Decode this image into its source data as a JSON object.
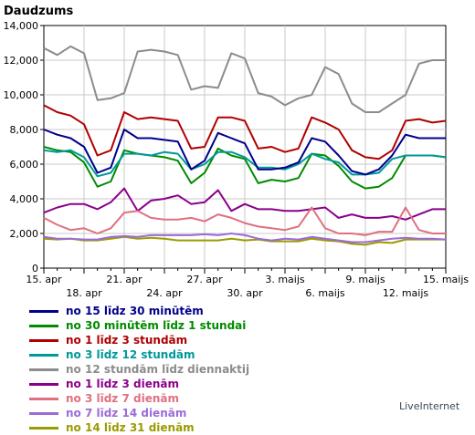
{
  "chart_data": {
    "type": "line",
    "ylabel": "Daudzums",
    "ylim": [
      0,
      14000
    ],
    "yticks": [
      0,
      2000,
      4000,
      6000,
      8000,
      10000,
      12000,
      14000
    ],
    "ytick_labels": [
      "0",
      "2,000",
      "4,000",
      "6,000",
      "8,000",
      "10,000",
      "12,000",
      "14,000"
    ],
    "x": [
      "15. apr",
      "16. apr",
      "17. apr",
      "18. apr",
      "19. apr",
      "20. apr",
      "21. apr",
      "22. apr",
      "23. apr",
      "24. apr",
      "25. apr",
      "26. apr",
      "27. apr",
      "28. apr",
      "29. apr",
      "30. apr",
      "1. maijs",
      "2. maijs",
      "3. maijs",
      "4. maijs",
      "5. maijs",
      "6. maijs",
      "7. maijs",
      "8. maijs",
      "9. maijs",
      "10. maijs",
      "11. maijs",
      "12. maijs",
      "13. maijs",
      "14. maijs",
      "15. maijs"
    ],
    "xtick_labels_upper": [
      {
        "index": 0,
        "label": "15. apr"
      },
      {
        "index": 6,
        "label": "21. apr"
      },
      {
        "index": 12,
        "label": "27. apr"
      },
      {
        "index": 18,
        "label": "3. maijs"
      },
      {
        "index": 24,
        "label": "9. maijs"
      },
      {
        "index": 30,
        "label": "15. maijs"
      }
    ],
    "xtick_labels_lower": [
      {
        "index": 3,
        "label": "18. apr"
      },
      {
        "index": 9,
        "label": "24. apr"
      },
      {
        "index": 15,
        "label": "30. apr"
      },
      {
        "index": 21,
        "label": "6. maijs"
      },
      {
        "index": 27,
        "label": "12. maijs"
      }
    ],
    "grid": true,
    "legend_position": "bottom",
    "series": [
      {
        "name": "no 15 līdz 30 minūtēm",
        "color": "#00008b",
        "values": [
          8000,
          7700,
          7500,
          7000,
          5500,
          5800,
          8000,
          7500,
          7500,
          7400,
          7300,
          5700,
          6200,
          7800,
          7500,
          7200,
          5700,
          5700,
          5800,
          6100,
          7500,
          7300,
          6500,
          5600,
          5400,
          5700,
          6500,
          7700,
          7500,
          7500,
          7500
        ]
      },
      {
        "name": "no 30 minūtēm līdz 1 stundai",
        "color": "#008b00",
        "values": [
          7000,
          6800,
          6700,
          6100,
          4700,
          5000,
          6800,
          6600,
          6500,
          6400,
          6200,
          4900,
          5500,
          6900,
          6500,
          6300,
          4900,
          5100,
          5000,
          5200,
          6600,
          6500,
          5900,
          5000,
          4600,
          4700,
          5200,
          6500,
          6500,
          6500,
          6400
        ]
      },
      {
        "name": "no 1 līdz 3 stundām",
        "color": "#b00000",
        "values": [
          9400,
          9000,
          8800,
          8300,
          6500,
          6800,
          9000,
          8600,
          8700,
          8600,
          8500,
          6900,
          7000,
          8700,
          8700,
          8500,
          6900,
          7000,
          6700,
          6900,
          8700,
          8400,
          8000,
          6800,
          6400,
          6300,
          6800,
          8500,
          8600,
          8400,
          8500
        ]
      },
      {
        "name": "no 3 līdz 12 stundām",
        "color": "#00999a",
        "values": [
          6800,
          6700,
          6800,
          6400,
          5300,
          5500,
          6600,
          6600,
          6500,
          6700,
          6600,
          5700,
          6000,
          6700,
          6700,
          6400,
          5800,
          5800,
          5700,
          6000,
          6600,
          6300,
          6100,
          5400,
          5400,
          5500,
          6300,
          6500,
          6500,
          6500,
          6400
        ]
      },
      {
        "name": "no 12 stundām līdz diennaktij",
        "color": "#8c8c8c",
        "values": [
          12700,
          12300,
          12800,
          12400,
          9700,
          9800,
          10100,
          12500,
          12600,
          12500,
          12300,
          10300,
          10500,
          10400,
          12400,
          12100,
          10100,
          9900,
          9400,
          9800,
          10000,
          11600,
          11200,
          9500,
          9000,
          9000,
          9500,
          10000,
          11800,
          12000,
          12000
        ]
      },
      {
        "name": "no 1 līdz 3 dienām",
        "color": "#8b008b",
        "values": [
          3200,
          3500,
          3700,
          3700,
          3400,
          3800,
          4600,
          3300,
          3900,
          4000,
          4200,
          3700,
          3800,
          4500,
          3300,
          3700,
          3400,
          3400,
          3300,
          3300,
          3400,
          3500,
          2900,
          3100,
          2900,
          2900,
          3000,
          2800,
          3100,
          3400,
          3400
        ]
      },
      {
        "name": "no 3 līdz 7 dienām",
        "color": "#e07080",
        "values": [
          2900,
          2500,
          2200,
          2300,
          2000,
          2300,
          3200,
          3300,
          2900,
          2800,
          2800,
          2900,
          2700,
          3100,
          2900,
          2600,
          2400,
          2300,
          2200,
          2400,
          3500,
          2300,
          2000,
          2000,
          1900,
          2100,
          2100,
          3500,
          2200,
          2000,
          2000
        ]
      },
      {
        "name": "no 7 līdz 14 dienām",
        "color": "#9b6bd8",
        "values": [
          1800,
          1700,
          1700,
          1650,
          1650,
          1800,
          1850,
          1800,
          1900,
          1900,
          1900,
          1900,
          1950,
          1900,
          2000,
          1900,
          1700,
          1600,
          1700,
          1650,
          1800,
          1700,
          1600,
          1500,
          1500,
          1600,
          1700,
          1750,
          1700,
          1700,
          1650
        ]
      },
      {
        "name": "no 14 līdz 31 dienām",
        "color": "#9b9b00",
        "values": [
          1700,
          1650,
          1700,
          1600,
          1600,
          1700,
          1800,
          1700,
          1750,
          1700,
          1600,
          1600,
          1600,
          1600,
          1700,
          1600,
          1650,
          1550,
          1550,
          1550,
          1700,
          1600,
          1550,
          1400,
          1350,
          1500,
          1450,
          1650,
          1650,
          1650,
          1650
        ]
      }
    ]
  },
  "footer": {
    "credit": "LiveInternet"
  }
}
